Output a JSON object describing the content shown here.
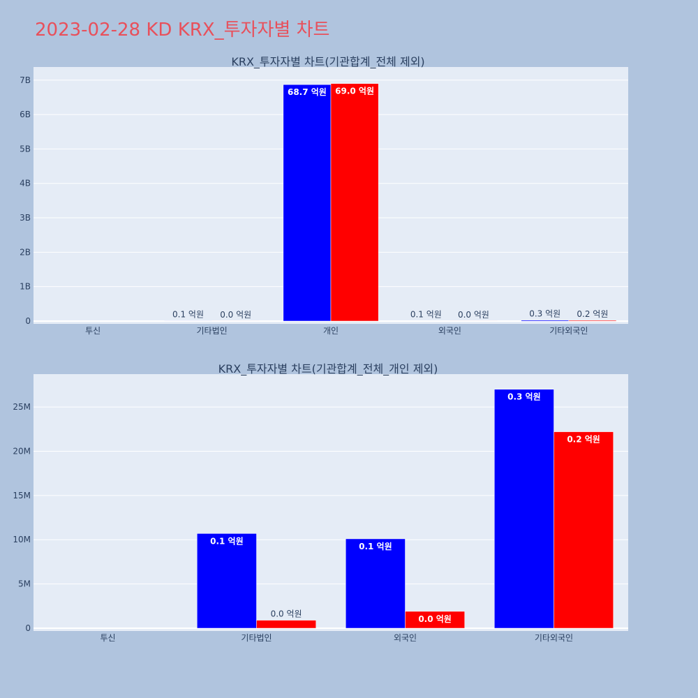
{
  "page": {
    "title": "2023-02-28 KD KRX_투자자별 차트",
    "background": "#b0c4de",
    "title_color": "#e8505b"
  },
  "chart_data": [
    {
      "type": "bar",
      "title": "KRX_투자자별 차트(기관합계_전체 제외)",
      "categories": [
        "투신",
        "기타법인",
        "개인",
        "외국인",
        "기타외국인"
      ],
      "series": [
        {
          "color": "#0000ff",
          "values": [
            0,
            10700000,
            6870000000,
            10100000,
            27000000
          ],
          "labels": [
            "",
            "0.1 억원",
            "68.7 억원",
            "0.1 억원",
            "0.3 억원"
          ]
        },
        {
          "color": "#ff0000",
          "values": [
            0,
            900000,
            6900000000,
            1900000,
            22200000
          ],
          "labels": [
            "",
            "0.0 억원",
            "69.0 억원",
            "0.0 억원",
            "0.2 억원"
          ]
        }
      ],
      "ylim": [
        0,
        7300000000
      ],
      "yticks": [
        0,
        1000000000,
        2000000000,
        3000000000,
        4000000000,
        5000000000,
        6000000000,
        7000000000
      ],
      "ytick_labels": [
        "0",
        "1B",
        "2B",
        "3B",
        "4B",
        "5B",
        "6B",
        "7B"
      ],
      "plot_bg": "#e5ecf6",
      "grid": true
    },
    {
      "type": "bar",
      "title": "KRX_투자자별 차트(기관합계_전체_개인 제외)",
      "categories": [
        "투신",
        "기타법인",
        "외국인",
        "기타외국인"
      ],
      "series": [
        {
          "color": "#0000ff",
          "values": [
            0,
            10700000,
            10100000,
            27000000
          ],
          "labels": [
            "",
            "0.1 억원",
            "0.1 억원",
            "0.3 억원"
          ]
        },
        {
          "color": "#ff0000",
          "values": [
            0,
            900000,
            1900000,
            22200000
          ],
          "labels": [
            "",
            "0.0 억원",
            "0.0 억원",
            "0.2 억원"
          ]
        }
      ],
      "ylim": [
        0,
        28400000
      ],
      "yticks": [
        0,
        5000000,
        10000000,
        15000000,
        20000000,
        25000000
      ],
      "ytick_labels": [
        "0",
        "5M",
        "10M",
        "15M",
        "20M",
        "25M"
      ],
      "plot_bg": "#e5ecf6",
      "grid": true
    }
  ]
}
